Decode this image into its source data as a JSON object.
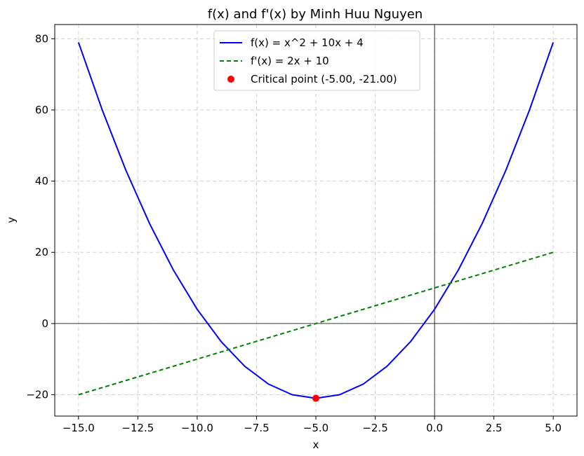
{
  "chart_data": {
    "type": "line",
    "title": "f(x) and f'(x) by Minh Huu Nguyen",
    "xlabel": "x",
    "ylabel": "y",
    "xlim": [
      -16,
      6
    ],
    "ylim": [
      -26,
      84
    ],
    "xticks": [
      -15.0,
      -12.5,
      -10.0,
      -7.5,
      -5.0,
      -2.5,
      0.0,
      2.5,
      5.0
    ],
    "xtick_labels": [
      "−15.0",
      "−12.5",
      "−10.0",
      "−7.5",
      "−5.0",
      "−2.5",
      "0.0",
      "2.5",
      "5.0"
    ],
    "yticks": [
      -20,
      0,
      20,
      40,
      60,
      80
    ],
    "ytick_labels": [
      "−20",
      "0",
      "20",
      "40",
      "60",
      "80"
    ],
    "grid": true,
    "legend_position": "top-center",
    "series": [
      {
        "name": "f(x) = x^2 + 10x + 4",
        "style": "solid",
        "color": "#0000ff",
        "x": [
          -15,
          -14,
          -13,
          -12,
          -11,
          -10,
          -9,
          -8,
          -7,
          -6,
          -5,
          -4,
          -3,
          -2,
          -1,
          0,
          1,
          2,
          3,
          4,
          5
        ],
        "y": [
          79,
          60,
          43,
          28,
          15,
          4,
          -5,
          -12,
          -17,
          -20,
          -21,
          -20,
          -17,
          -12,
          -5,
          4,
          15,
          28,
          43,
          60,
          79
        ]
      },
      {
        "name": "f'(x) = 2x + 10",
        "style": "dashed",
        "color": "#008000",
        "x": [
          -15,
          5
        ],
        "y": [
          -20,
          20
        ]
      }
    ],
    "points": [
      {
        "name": "Critical point (-5.00, -21.00)",
        "color": "#ff0000",
        "x": -5,
        "y": -21
      }
    ]
  }
}
